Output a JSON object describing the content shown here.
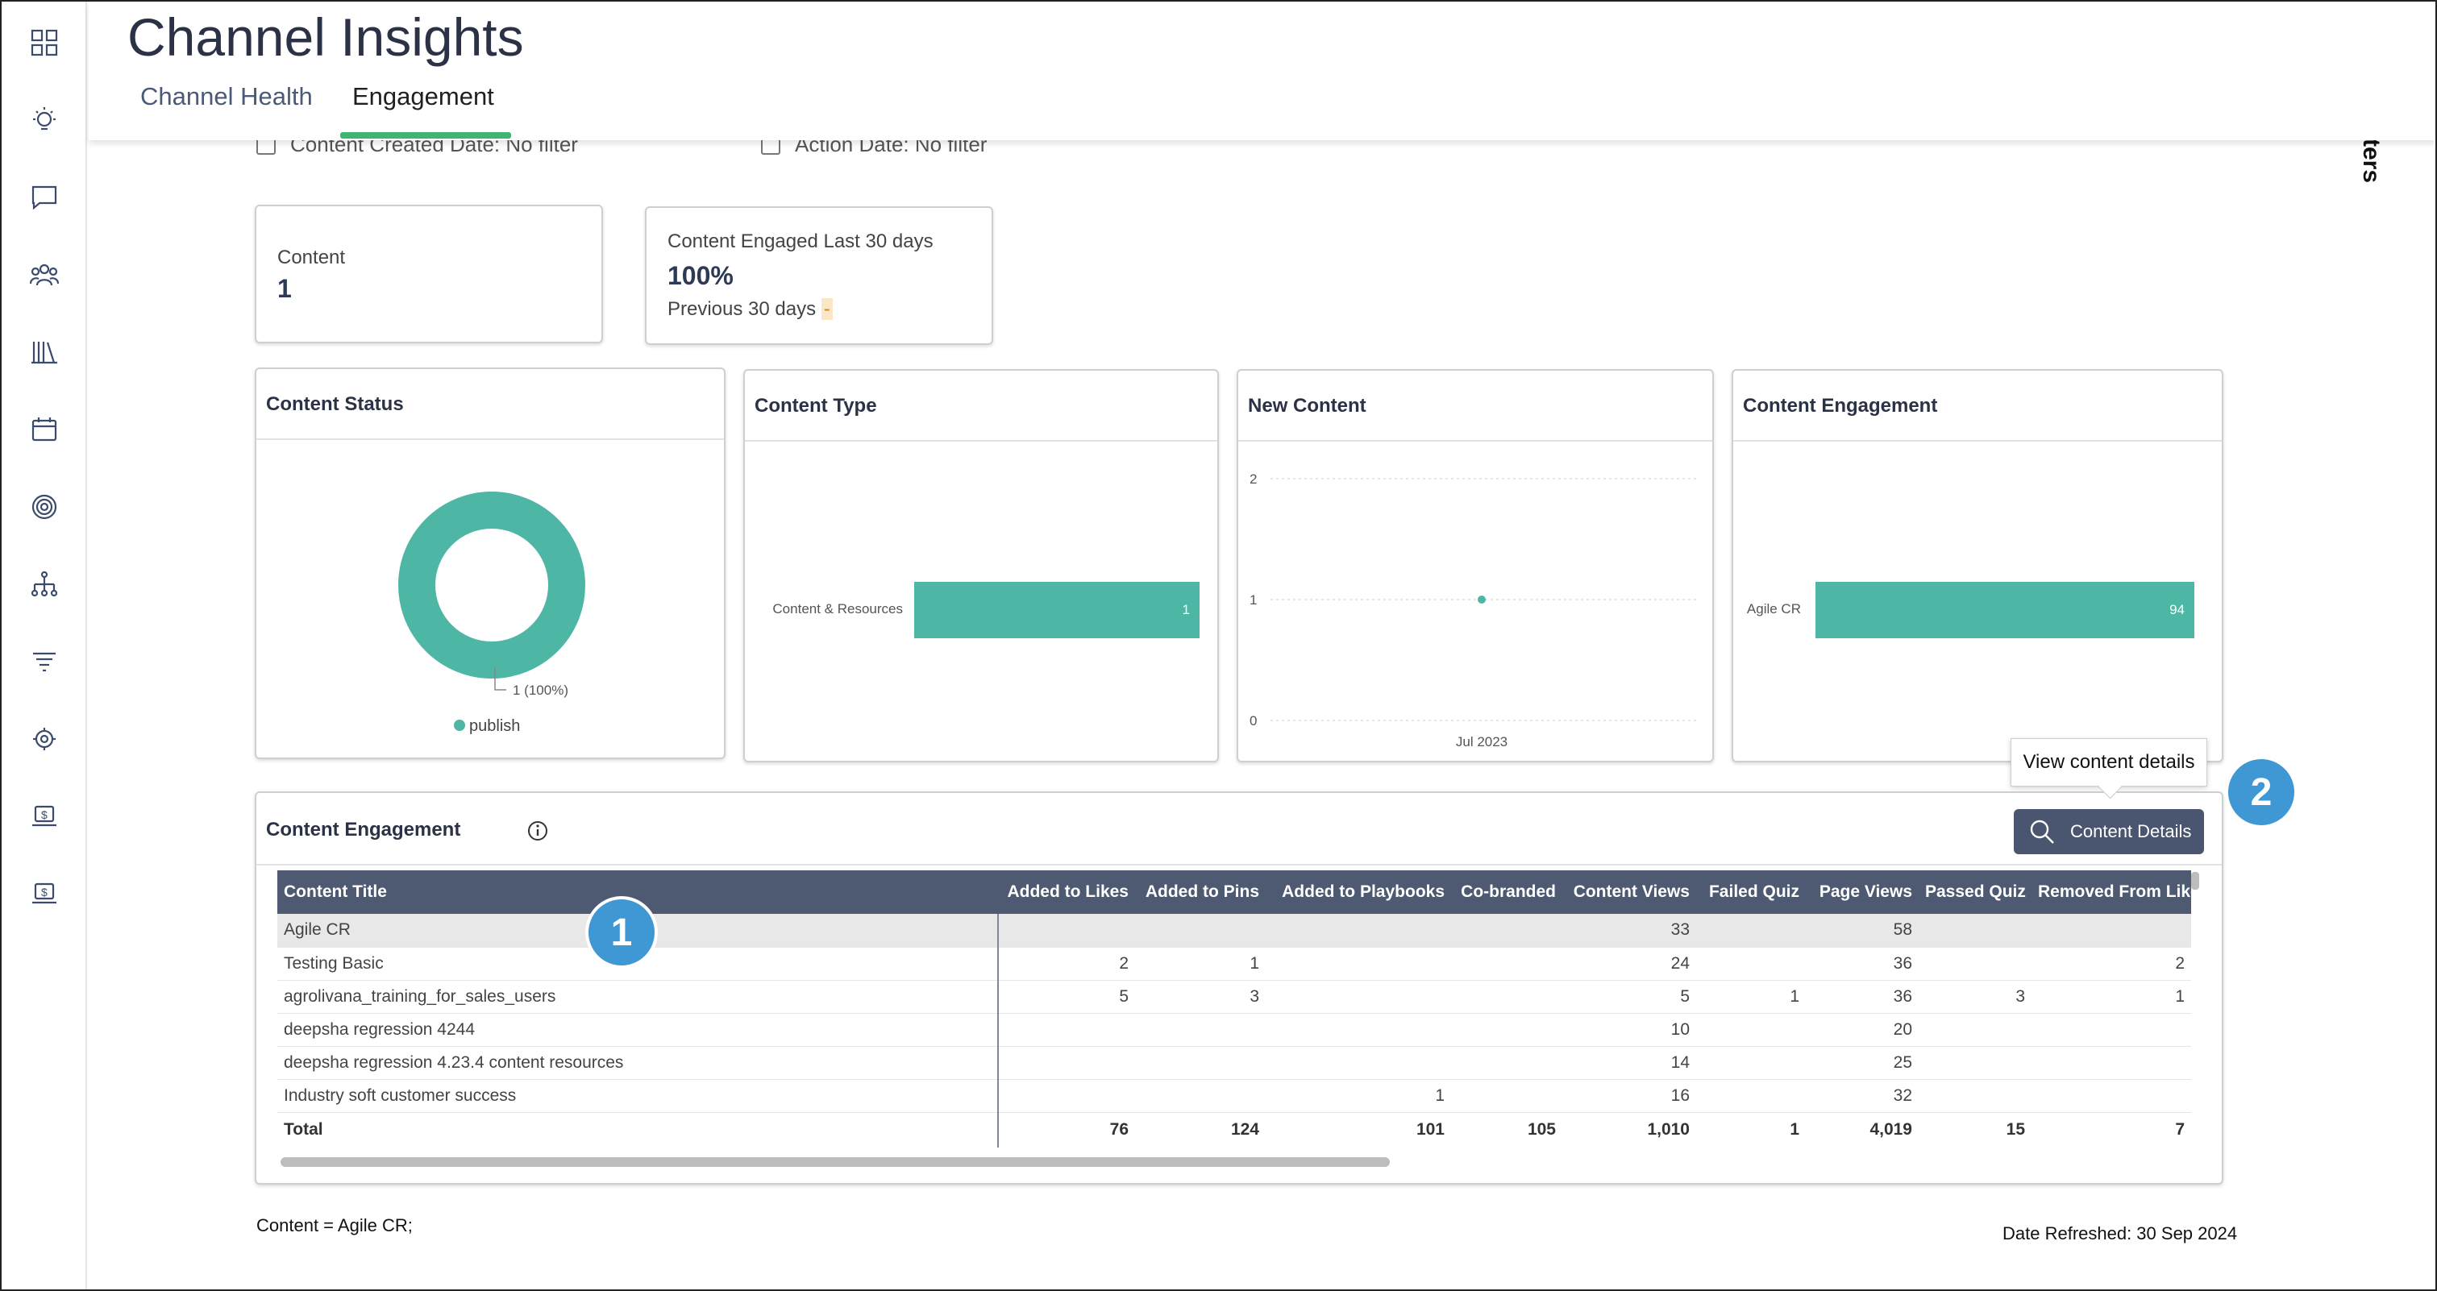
{
  "header": {
    "title": "Channel Insights",
    "tabs": [
      {
        "label": "Channel Health"
      },
      {
        "label": "Engagement"
      }
    ]
  },
  "sidebar": {
    "icons": [
      "dashboard-icon",
      "lightbulb-icon",
      "chat-icon",
      "people-icon",
      "library-icon",
      "calendar-icon",
      "target-icon",
      "hierarchy-icon",
      "filter-icon",
      "support-icon",
      "laptop-dollar-icon",
      "laptop-dollar-2-icon"
    ]
  },
  "filters": {
    "content_created": "Content Created Date: No filter",
    "action_date": "Action Date: No filter"
  },
  "side_tab_label": "ters",
  "kpis": {
    "content": {
      "label": "Content",
      "value": "1"
    },
    "engaged": {
      "label": "Content Engaged Last 30 days",
      "value": "100%",
      "sub": "Previous 30 days",
      "sub_value": "-"
    }
  },
  "panels": {
    "status": {
      "title": "Content Status",
      "slice_label": "1 (100%)",
      "legend": "publish",
      "value": 1,
      "color": "#4db6a5"
    },
    "type": {
      "title": "Content Type",
      "category": "Content & Resources",
      "value": 1,
      "value_label": "1"
    },
    "new_content": {
      "title": "New Content",
      "y_ticks": [
        "2",
        "1",
        "0"
      ],
      "x_tick": "Jul 2023",
      "point_value": 1
    },
    "engagement": {
      "title": "Content Engagement",
      "category": "Agile CR",
      "value": 94,
      "value_label": "94"
    }
  },
  "chart_data": [
    {
      "type": "pie",
      "title": "Content Status",
      "categories": [
        "publish"
      ],
      "values": [
        1
      ]
    },
    {
      "type": "bar",
      "title": "Content Type",
      "categories": [
        "Content & Resources"
      ],
      "values": [
        1
      ]
    },
    {
      "type": "scatter",
      "title": "New Content",
      "x": [
        "Jul 2023"
      ],
      "values": [
        1
      ],
      "ylim": [
        0,
        2
      ]
    },
    {
      "type": "bar",
      "title": "Content Engagement",
      "categories": [
        "Agile CR"
      ],
      "values": [
        94
      ]
    }
  ],
  "table": {
    "title": "Content Engagement",
    "details_button": "Content Details",
    "tooltip": "View content details",
    "columns": [
      "Content Title",
      "Added to Likes",
      "Added to Pins",
      "Added to Playbooks",
      "Co-branded",
      "Content Views",
      "Failed Quiz",
      "Page Views",
      "Passed Quiz",
      "Removed From Likes"
    ],
    "rows": [
      [
        "Agile CR",
        "",
        "",
        "",
        "",
        "33",
        "",
        "58",
        "",
        ""
      ],
      [
        "Testing Basic",
        "2",
        "1",
        "",
        "",
        "24",
        "",
        "36",
        "",
        "2"
      ],
      [
        "agrolivana_training_for_sales_users",
        "5",
        "3",
        "",
        "",
        "5",
        "1",
        "36",
        "3",
        "1"
      ],
      [
        "deepsha regression 4244",
        "",
        "",
        "",
        "",
        "10",
        "",
        "20",
        "",
        ""
      ],
      [
        "deepsha regression 4.23.4 content resources",
        "",
        "",
        "",
        "",
        "14",
        "",
        "25",
        "",
        ""
      ],
      [
        "Industry soft customer success",
        "",
        "",
        "1",
        "",
        "16",
        "",
        "32",
        "",
        ""
      ]
    ],
    "total": [
      "Total",
      "76",
      "124",
      "101",
      "105",
      "1,010",
      "1",
      "4,019",
      "15",
      "7"
    ]
  },
  "markers": [
    "1",
    "2"
  ],
  "footer": {
    "selection": "Content = Agile CR;",
    "refreshed": "Date Refreshed: 30 Sep 2024"
  },
  "colors": {
    "accent": "#4db6a5",
    "header_bg": "#4d5a72",
    "tab_underline": "#3fb56f",
    "marker": "#3f97d3"
  }
}
